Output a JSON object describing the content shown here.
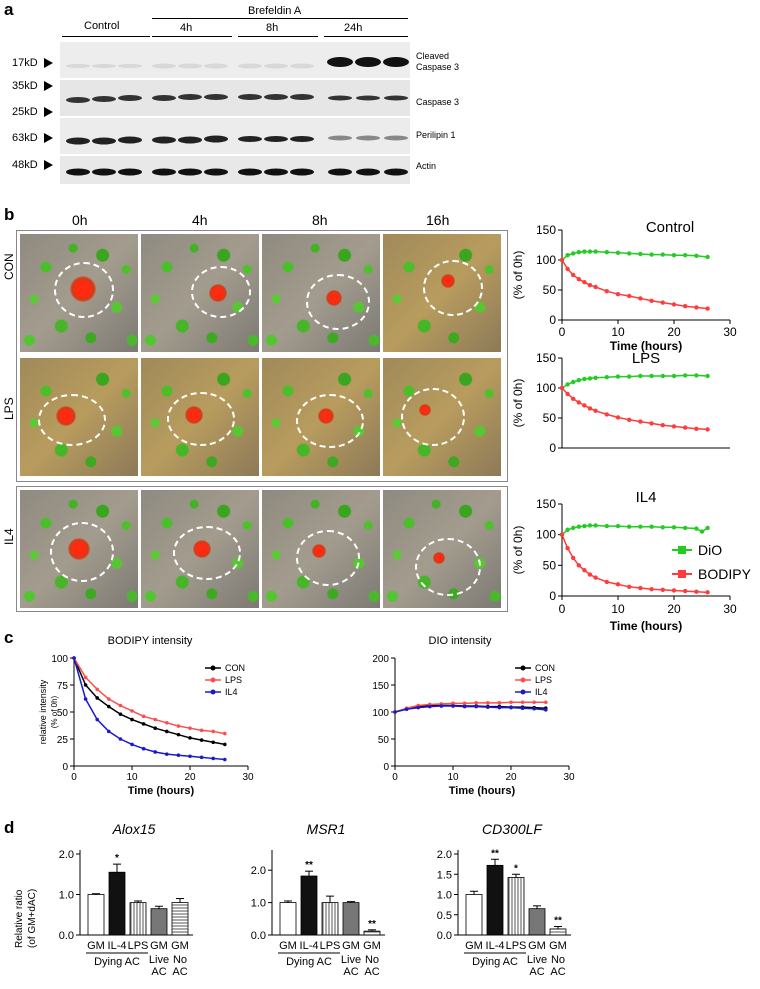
{
  "panels": {
    "a": {
      "letter": "a",
      "group_control": "Control",
      "group_treatment": "Brefeldin A",
      "timepoints": [
        "4h",
        "8h",
        "24h"
      ],
      "markers": [
        "17kD",
        "35kD",
        "25kD",
        "63kD",
        "48kD"
      ],
      "bands": [
        "Cleaved Caspase 3",
        "Caspase 3",
        "Perilipin 1",
        "Actin"
      ],
      "band_line1": "Cleaved",
      "band_line2": "Caspase 3"
    },
    "b": {
      "letter": "b",
      "timepoints": [
        "0h",
        "4h",
        "8h",
        "16h"
      ],
      "rows": [
        "CON",
        "LPS",
        "IL4"
      ],
      "legend": {
        "dio": "DiO",
        "bodipy": "BODIPY"
      }
    },
    "c": {
      "letter": "c"
    },
    "d": {
      "letter": "d",
      "ylabel_line1": "Relative ratio",
      "ylabel_line2": "(of GM+dAC)",
      "dying_ac": "Dying AC",
      "live_ac": [
        "Live",
        "AC"
      ],
      "no_ac": [
        "No",
        "AC"
      ]
    }
  },
  "colors": {
    "dio": "#22cc22",
    "bodipy": "#ff3b3b",
    "con": "#000000",
    "lps": "#ff4d4d",
    "il4": "#1a1acc"
  },
  "chart_data": [
    {
      "id": "b-control",
      "type": "line",
      "title": "Control",
      "xlabel": "Time (hours)",
      "ylabel": "(% of 0h)",
      "xlim": [
        0,
        30
      ],
      "ylim": [
        0,
        150
      ],
      "xticks": [
        0,
        10,
        20,
        30
      ],
      "yticks": [
        0,
        50,
        100,
        150
      ],
      "series": [
        {
          "name": "DiO",
          "x": [
            0,
            1,
            2,
            3,
            4,
            5,
            6,
            8,
            10,
            12,
            14,
            16,
            18,
            20,
            22,
            24,
            26
          ],
          "values": [
            100,
            108,
            111,
            113,
            114,
            114,
            114,
            113,
            112,
            111,
            110,
            109,
            109,
            108,
            108,
            107,
            105
          ]
        },
        {
          "name": "BODIPY",
          "x": [
            0,
            1,
            2,
            3,
            4,
            5,
            6,
            8,
            10,
            12,
            14,
            16,
            18,
            20,
            22,
            24,
            26
          ],
          "values": [
            100,
            85,
            75,
            68,
            63,
            58,
            55,
            48,
            43,
            40,
            36,
            32,
            29,
            26,
            23,
            21,
            19
          ]
        }
      ]
    },
    {
      "id": "b-lps",
      "type": "line",
      "title": "LPS",
      "xlabel": "",
      "ylabel": "(% of 0h)",
      "xlim": [
        0,
        30
      ],
      "ylim": [
        0,
        150
      ],
      "xticks": [],
      "yticks": [
        0,
        50,
        100,
        150
      ],
      "series": [
        {
          "name": "DiO",
          "x": [
            0,
            1,
            2,
            3,
            4,
            5,
            6,
            8,
            10,
            12,
            14,
            16,
            18,
            20,
            22,
            24,
            26
          ],
          "values": [
            100,
            106,
            110,
            113,
            115,
            116,
            117,
            118,
            119,
            119,
            120,
            120,
            120,
            120,
            121,
            121,
            120
          ]
        },
        {
          "name": "BODIPY",
          "x": [
            0,
            1,
            2,
            3,
            4,
            5,
            6,
            8,
            10,
            12,
            14,
            16,
            18,
            20,
            22,
            24,
            26
          ],
          "values": [
            100,
            90,
            82,
            76,
            71,
            66,
            62,
            56,
            51,
            47,
            44,
            41,
            38,
            36,
            34,
            32,
            31
          ]
        }
      ]
    },
    {
      "id": "b-il4",
      "type": "line",
      "title": "IL4",
      "xlabel": "",
      "ylabel": "(% of 0h)",
      "xlim": [
        0,
        30
      ],
      "ylim": [
        0,
        150
      ],
      "xticks": [],
      "yticks": [
        0,
        50,
        100,
        150
      ],
      "series": [
        {
          "name": "DiO",
          "x": [
            0,
            1,
            2,
            3,
            4,
            5,
            6,
            8,
            10,
            12,
            14,
            16,
            18,
            20,
            22,
            24,
            25,
            26
          ],
          "values": [
            100,
            108,
            111,
            113,
            114,
            115,
            115,
            114,
            114,
            113,
            113,
            113,
            112,
            112,
            111,
            110,
            105,
            111
          ]
        },
        {
          "name": "BODIPY",
          "x": [
            0,
            1,
            2,
            3,
            4,
            5,
            6,
            8,
            10,
            12,
            14,
            16,
            18,
            20,
            22,
            24,
            26
          ],
          "values": [
            100,
            78,
            62,
            50,
            42,
            35,
            30,
            23,
            19,
            15,
            13,
            11,
            10,
            9,
            8,
            7,
            6
          ]
        }
      ]
    },
    {
      "id": "c-bodipy",
      "type": "line",
      "title": "BODIPY  intensity",
      "xlabel": "Time (hours)",
      "ylabel": "relative intensity",
      "ylabel2": "(% of 0h)",
      "xlim": [
        0,
        30
      ],
      "ylim": [
        0,
        100
      ],
      "xticks": [
        0,
        10,
        20,
        30
      ],
      "yticks": [
        0,
        25,
        50,
        75,
        100
      ],
      "series": [
        {
          "name": "CON",
          "x": [
            0,
            2,
            4,
            6,
            8,
            10,
            12,
            14,
            16,
            18,
            20,
            22,
            24,
            26
          ],
          "values": [
            100,
            75,
            63,
            55,
            48,
            43,
            39,
            35,
            32,
            29,
            26,
            24,
            22,
            20
          ]
        },
        {
          "name": "LPS",
          "x": [
            0,
            2,
            4,
            6,
            8,
            10,
            12,
            14,
            16,
            18,
            20,
            22,
            24,
            26
          ],
          "values": [
            100,
            82,
            71,
            62,
            56,
            51,
            46,
            43,
            40,
            37,
            35,
            33,
            32,
            30
          ]
        },
        {
          "name": "IL4",
          "x": [
            0,
            2,
            4,
            6,
            8,
            10,
            12,
            14,
            16,
            18,
            20,
            22,
            24,
            26
          ],
          "values": [
            100,
            62,
            43,
            32,
            25,
            20,
            16,
            13,
            11,
            10,
            9,
            8,
            7,
            6
          ]
        }
      ]
    },
    {
      "id": "c-dio",
      "type": "line",
      "title": "DIO  intensity",
      "xlabel": "Time (hours)",
      "ylabel": "",
      "xlim": [
        0,
        30
      ],
      "ylim": [
        0,
        200
      ],
      "xticks": [
        0,
        10,
        20,
        30
      ],
      "yticks": [
        0,
        50,
        100,
        150,
        200
      ],
      "series": [
        {
          "name": "CON",
          "x": [
            0,
            2,
            4,
            6,
            8,
            10,
            12,
            14,
            16,
            18,
            20,
            22,
            24,
            26
          ],
          "values": [
            100,
            106,
            110,
            112,
            112,
            112,
            111,
            111,
            110,
            110,
            109,
            109,
            108,
            107
          ]
        },
        {
          "name": "LPS",
          "x": [
            0,
            2,
            4,
            6,
            8,
            10,
            12,
            14,
            16,
            18,
            20,
            22,
            24,
            26
          ],
          "values": [
            100,
            107,
            112,
            114,
            115,
            116,
            116,
            117,
            117,
            117,
            118,
            118,
            118,
            118
          ]
        },
        {
          "name": "IL4",
          "x": [
            0,
            2,
            4,
            6,
            8,
            10,
            12,
            14,
            16,
            18,
            20,
            22,
            24,
            26
          ],
          "values": [
            100,
            105,
            108,
            110,
            111,
            111,
            110,
            110,
            109,
            108,
            108,
            107,
            106,
            104
          ]
        }
      ]
    },
    {
      "id": "d-alox15",
      "type": "bar",
      "title": "Alox15",
      "categories": [
        "GM",
        "IL-4",
        "LPS",
        "GM",
        "GM"
      ],
      "values": [
        1.0,
        1.55,
        0.8,
        0.65,
        0.8
      ],
      "errors": [
        0.02,
        0.2,
        0.04,
        0.06,
        0.1
      ],
      "significance": [
        "",
        "*",
        "",
        "",
        ""
      ],
      "ylim": [
        0,
        2.0
      ],
      "yticks": [
        "0.0",
        "1.0",
        "2.0"
      ]
    },
    {
      "id": "d-msr1",
      "type": "bar",
      "title": "MSR1",
      "categories": [
        "GM",
        "IL-4",
        "LPS",
        "GM",
        "GM"
      ],
      "values": [
        1.0,
        1.82,
        1.0,
        1.0,
        0.12
      ],
      "errors": [
        0.05,
        0.15,
        0.2,
        0.03,
        0.04
      ],
      "significance": [
        "",
        "**",
        "",
        "",
        "**"
      ],
      "ylim": [
        0,
        2.5
      ],
      "yticks": [
        "0.0",
        "1.0",
        "2.0"
      ]
    },
    {
      "id": "d-cd300lf",
      "type": "bar",
      "title": "CD300LF",
      "categories": [
        "GM",
        "IL-4",
        "LPS",
        "GM",
        "GM"
      ],
      "values": [
        1.0,
        1.72,
        1.42,
        0.65,
        0.15
      ],
      "errors": [
        0.08,
        0.15,
        0.08,
        0.07,
        0.06
      ],
      "significance": [
        "",
        "**",
        "*",
        "",
        "**"
      ],
      "ylim": [
        0,
        2.0
      ],
      "yticks": [
        "0.0",
        "0.5",
        "1.0",
        "1.5",
        "2.0"
      ]
    }
  ]
}
